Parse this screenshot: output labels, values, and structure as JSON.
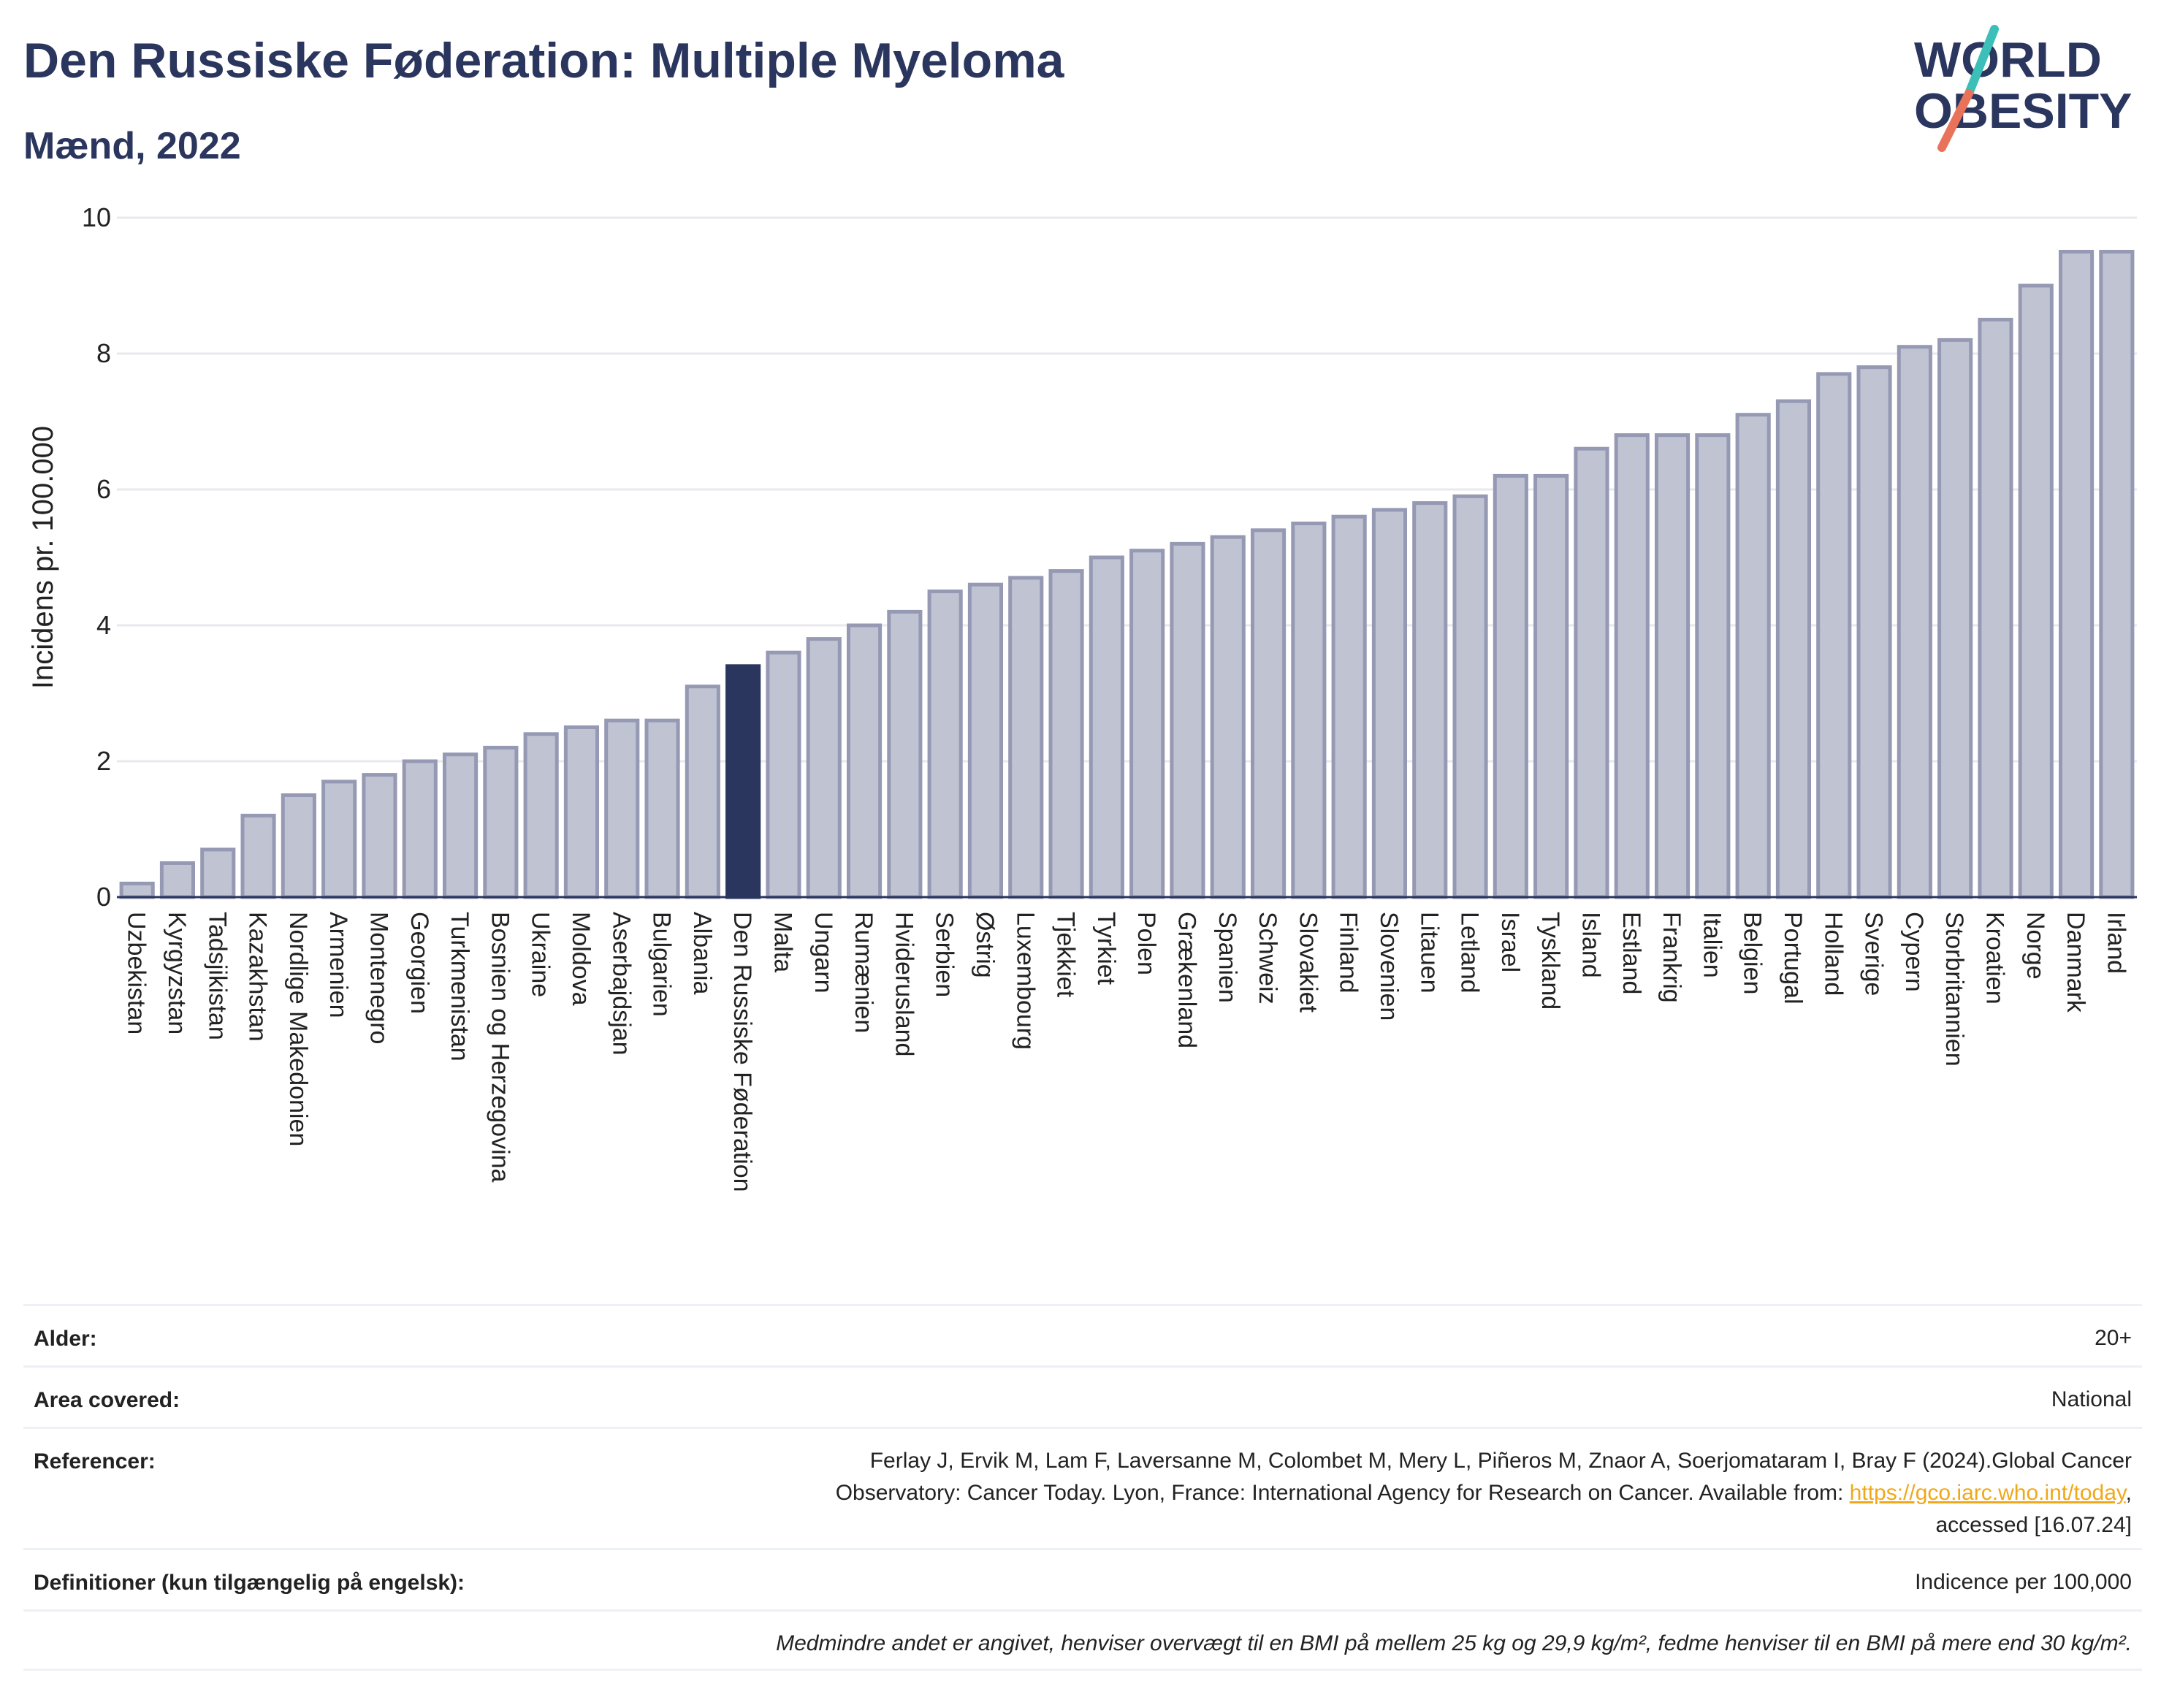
{
  "header": {
    "title": "Den Russiske Føderation: Multiple Myeloma",
    "subtitle": "Mænd, 2022"
  },
  "logo": {
    "line1": "WORLD",
    "line2": "OBESITY"
  },
  "colors": {
    "title": "#2b365e",
    "bar": "#bfc3d2",
    "bar_stroke": "#9599b3",
    "highlight": "#2b365e",
    "grid": "#e8e9ef",
    "link": "#f0a81b",
    "logo_teal": "#3bbfb8",
    "logo_coral": "#e8735a"
  },
  "chart_data": {
    "type": "bar",
    "title": "Den Russiske Føderation: Multiple Myeloma",
    "subtitle": "Mænd, 2022",
    "ylabel": "Incidens pr. 100.000",
    "xlabel": "",
    "ylim": [
      0,
      10
    ],
    "yticks": [
      "0",
      "2",
      "4",
      "6",
      "8",
      "10"
    ],
    "grid": true,
    "highlight": "Den Russiske Føderation",
    "categories": [
      "Uzbekistan",
      "Kyrgyzstan",
      "Tadsjikistan",
      "Kazakhstan",
      "Nordlige Makedonien",
      "Armenien",
      "Montenegro",
      "Georgien",
      "Turkmenistan",
      "Bosnien og Herzegovina",
      "Ukraine",
      "Moldova",
      "Aserbajdsjan",
      "Bulgarien",
      "Albania",
      "Den Russiske Føderation",
      "Malta",
      "Ungarn",
      "Rumænien",
      "Hviderusland",
      "Serbien",
      "Østrig",
      "Luxembourg",
      "Tjekkiet",
      "Tyrkiet",
      "Polen",
      "Grækenland",
      "Spanien",
      "Schweiz",
      "Slovakiet",
      "Finland",
      "Slovenien",
      "Litauen",
      "Letland",
      "Israel",
      "Tyskland",
      "Island",
      "Estland",
      "Frankrig",
      "Italien",
      "Belgien",
      "Portugal",
      "Holland",
      "Sverige",
      "Cypern",
      "Storbritannien",
      "Kroatien",
      "Norge",
      "Danmark",
      "Irland"
    ],
    "values": [
      0.2,
      0.5,
      0.7,
      1.2,
      1.5,
      1.7,
      1.8,
      2.0,
      2.1,
      2.2,
      2.4,
      2.5,
      2.6,
      2.6,
      3.1,
      3.4,
      3.6,
      3.8,
      4.0,
      4.2,
      4.5,
      4.6,
      4.7,
      4.8,
      5.0,
      5.1,
      5.2,
      5.3,
      5.4,
      5.5,
      5.6,
      5.7,
      5.8,
      5.9,
      6.2,
      6.2,
      6.6,
      6.8,
      6.8,
      6.8,
      7.1,
      7.3,
      7.7,
      7.8,
      8.1,
      8.2,
      8.5,
      9.0,
      9.5,
      9.5
    ]
  },
  "info": {
    "age_label": "Alder:",
    "age_value": "20+",
    "area_label": "Area covered:",
    "area_value": "National",
    "ref_label": "Referencer:",
    "ref_line1": "Ferlay J, Ervik M, Lam F, Laversanne M, Colombet M, Mery L, Piñeros M, Znaor A, Soerjomataram I, Bray F (2024).Global Cancer",
    "ref_line2_pre": "Observatory: Cancer Today. Lyon, France: International Agency for Research on Cancer. Available from: ",
    "ref_link": "https://gco.iarc.who.int/today",
    "ref_line2_post": ",",
    "ref_line3": "accessed [16.07.24]",
    "def_label": "Definitioner (kun tilgængelig på engelsk):",
    "def_value": "Indicence per 100,000",
    "note": "Medmindre andet er angivet, henviser overvægt til en BMI på mellem 25 kg og 29,9 kg/m², fedme henviser til en BMI på mere end 30 kg/m²."
  }
}
